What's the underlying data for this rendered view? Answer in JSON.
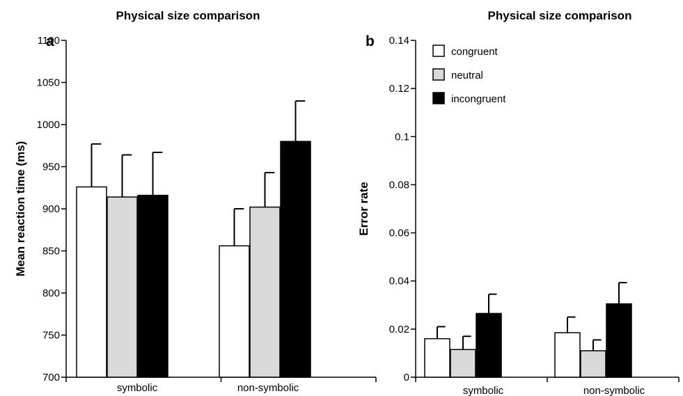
{
  "chart_data": [
    {
      "type": "bar",
      "panel_label": "a",
      "title": "Physical size comparison",
      "xlabel": "",
      "ylabel": "Mean reaction time (ms)",
      "ylim": [
        700,
        1100
      ],
      "yticks": [
        700,
        750,
        800,
        850,
        900,
        950,
        1000,
        1050,
        1100
      ],
      "categories": [
        "symbolic",
        "non-symbolic"
      ],
      "series": [
        {
          "name": "congruent",
          "values": [
            926,
            856
          ],
          "errors": [
            51,
            44
          ]
        },
        {
          "name": "neutral",
          "values": [
            914,
            902
          ],
          "errors": [
            50,
            41
          ]
        },
        {
          "name": "incongruent",
          "values": [
            916,
            980
          ],
          "errors": [
            51,
            48
          ]
        }
      ],
      "grid": false,
      "legend": null
    },
    {
      "type": "bar",
      "panel_label": "b",
      "title": "Physical size comparison",
      "xlabel": "",
      "ylabel": "Error rate",
      "ylim": [
        0,
        0.14
      ],
      "yticks": [
        "0",
        "0.02",
        "0.04",
        "0.06",
        "0.08",
        "0.1",
        "0.12",
        "0.14"
      ],
      "categories": [
        "symbolic",
        "non-symbolic"
      ],
      "series": [
        {
          "name": "congruent",
          "values": [
            0.016,
            0.0185
          ],
          "errors": [
            0.005,
            0.0065
          ]
        },
        {
          "name": "neutral",
          "values": [
            0.0115,
            0.011
          ],
          "errors": [
            0.0055,
            0.0045
          ]
        },
        {
          "name": "incongruent",
          "values": [
            0.0265,
            0.0305
          ],
          "errors": [
            0.008,
            0.0088
          ]
        }
      ],
      "grid": false,
      "legend": "top-left"
    }
  ],
  "colors": {
    "congruent": "#ffffff",
    "neutral": "#d9d9d9",
    "incongruent": "#000000",
    "outline": "#000000"
  }
}
